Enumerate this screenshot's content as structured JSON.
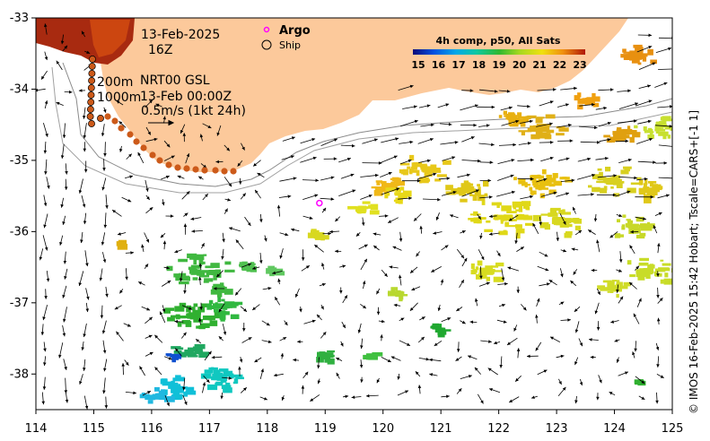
{
  "map": {
    "date": "13-Feb-2025",
    "hour": "16Z",
    "legend_argo": "Argo",
    "legend_ship": "Ship",
    "contour_200": "200m",
    "contour_1000": "1000m",
    "nrt_label": "NRT00 GSL",
    "nrt_time": "13-Feb 00:00Z",
    "scale_label": "0.5m/s (1kt 24h)",
    "colorbar_title": "4h comp, p50, All Sats",
    "colorbar_ticks": [
      "15",
      "16",
      "17",
      "18",
      "19",
      "20",
      "21",
      "22",
      "23"
    ],
    "credit": "© IMOS 16-Feb-2025 15:42 Hobart; Tscale=CARS+[-1 1]",
    "x_ticks": [
      "114",
      "115",
      "116",
      "117",
      "118",
      "119",
      "120",
      "121",
      "122",
      "123",
      "124",
      "125"
    ],
    "y_ticks": [
      "-33",
      "-34",
      "-35",
      "-36",
      "-37",
      "-38"
    ],
    "x_range": [
      114,
      125
    ],
    "y_range": [
      -38.5,
      -33
    ],
    "argo_position": [
      118.9,
      -35.6
    ],
    "colors": {
      "land": "#fcc99b",
      "argo": "#ff00ff",
      "ship_track": "#cc5a1a"
    }
  }
}
